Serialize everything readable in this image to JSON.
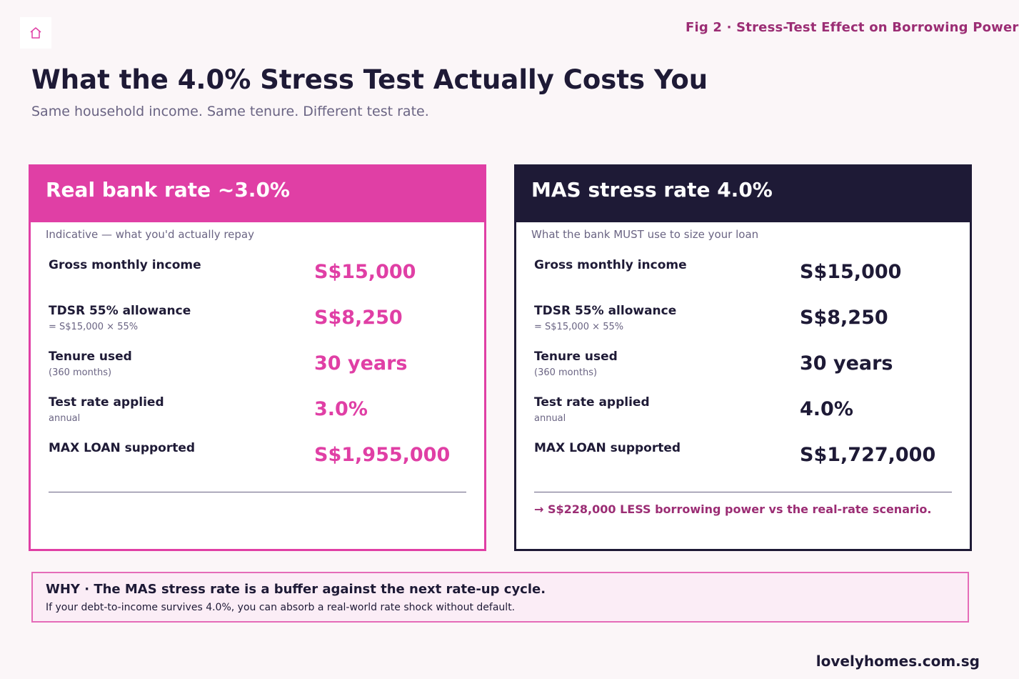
{
  "header": {
    "logo_icon": "house-icon",
    "fig_label": "Fig 2 · Stress-Test Effect on Borrowing Power",
    "title": "What the 4.0% Stress Test Actually Costs You",
    "subtitle": "Same household income. Same tenure. Different test rate."
  },
  "colors": {
    "accent_pink": "#e03fa5",
    "navy": "#1e1a36",
    "plum": "#9b2d74",
    "muted": "#6a6483"
  },
  "cards": {
    "real": {
      "title": "Real bank rate ~3.0%",
      "caption": "Indicative — what you'd actually repay",
      "rows": [
        {
          "label": "Gross monthly income",
          "note": "",
          "value": "S$15,000"
        },
        {
          "label": "TDSR 55% allowance",
          "note": "= S$15,000 × 55%",
          "value": "S$8,250"
        },
        {
          "label": "Tenure used",
          "note": "(360 months)",
          "value": "30 years"
        },
        {
          "label": "Test rate applied",
          "note": "annual",
          "value": "3.0%"
        },
        {
          "label": "MAX LOAN supported",
          "note": "",
          "value": "S$1,955,000"
        }
      ]
    },
    "mas": {
      "title": "MAS stress rate 4.0%",
      "caption": "What the bank MUST use to size your loan",
      "rows": [
        {
          "label": "Gross monthly income",
          "note": "",
          "value": "S$15,000"
        },
        {
          "label": "TDSR 55% allowance",
          "note": "= S$15,000 × 55%",
          "value": "S$8,250"
        },
        {
          "label": "Tenure used",
          "note": "(360 months)",
          "value": "30 years"
        },
        {
          "label": "Test rate applied",
          "note": "annual",
          "value": "4.0%"
        },
        {
          "label": "MAX LOAN supported",
          "note": "",
          "value": "S$1,727,000"
        }
      ],
      "footnote": "→ S$228,000 LESS borrowing power vs the real-rate scenario."
    }
  },
  "why": {
    "title": "WHY · The MAS stress rate is a buffer against the next rate-up cycle.",
    "text": "If your debt-to-income survives 4.0%, you can absorb a real-world rate shock without default."
  },
  "footer": {
    "brand": "lovelyhomes.com.sg"
  }
}
